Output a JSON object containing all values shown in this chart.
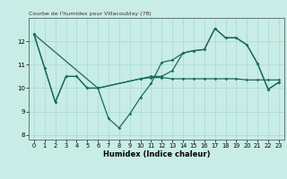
{
  "title": "Courbe de l'humidex pour Villacoublay (78)",
  "xlabel": "Humidex (Indice chaleur)",
  "bg_color": "#c8ece6",
  "line_color": "#1a6b5a",
  "grid_color": "#a8d8d0",
  "xlim": [
    -0.5,
    23.5
  ],
  "ylim": [
    7.8,
    13.0
  ],
  "yticks": [
    8,
    9,
    10,
    11,
    12
  ],
  "xticks": [
    0,
    1,
    2,
    3,
    4,
    5,
    6,
    7,
    8,
    9,
    10,
    11,
    12,
    13,
    14,
    15,
    16,
    17,
    18,
    19,
    20,
    21,
    22,
    23
  ],
  "line1_x": [
    0,
    1,
    2,
    3,
    4,
    5,
    6,
    7,
    8,
    9,
    10,
    11,
    12,
    13,
    14,
    15,
    16,
    17,
    18,
    19,
    20,
    21,
    22,
    23
  ],
  "line1_y": [
    12.3,
    10.85,
    9.4,
    10.5,
    10.5,
    10.0,
    10.0,
    8.7,
    8.3,
    8.9,
    9.6,
    10.2,
    11.1,
    11.2,
    11.5,
    11.6,
    11.65,
    12.55,
    12.15,
    12.15,
    11.85,
    11.05,
    9.95,
    10.25
  ],
  "line2_x": [
    0,
    1,
    2,
    3,
    4,
    5,
    6,
    10,
    11,
    12,
    13,
    14,
    15,
    16,
    17,
    18,
    19,
    20,
    21,
    22,
    23
  ],
  "line2_y": [
    12.3,
    10.85,
    9.4,
    10.5,
    10.5,
    10.0,
    10.0,
    10.4,
    10.45,
    10.45,
    10.4,
    10.4,
    10.4,
    10.4,
    10.4,
    10.4,
    10.4,
    10.35,
    10.35,
    10.35,
    10.35
  ],
  "line3_x": [
    0,
    6,
    10,
    11,
    12,
    13,
    14,
    15,
    16,
    17,
    18,
    19,
    20,
    21,
    22,
    23
  ],
  "line3_y": [
    12.3,
    10.0,
    10.4,
    10.5,
    10.5,
    10.75,
    11.5,
    11.6,
    11.65,
    12.55,
    12.15,
    12.15,
    11.85,
    11.05,
    9.95,
    10.25
  ]
}
